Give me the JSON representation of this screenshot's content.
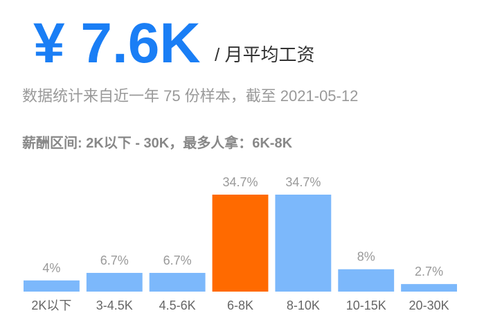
{
  "summary": {
    "headline": "¥ 7.6K",
    "unit": "/ 月平均工资",
    "subtitle": "数据统计来自近一年 75 份样本，截至 2021-05-12"
  },
  "chart_data": {
    "type": "bar",
    "title": "薪酬区间: 2K以下 - 30K，最多人拿：6K-8K",
    "categories": [
      "2K以下",
      "3-4.5K",
      "4.5-6K",
      "6-8K",
      "8-10K",
      "10-15K",
      "20-30K"
    ],
    "values": [
      4,
      6.7,
      6.7,
      34.7,
      34.7,
      8,
      2.7
    ],
    "value_labels": [
      "4%",
      "6.7%",
      "6.7%",
      "34.7%",
      "34.7%",
      "8%",
      "2.7%"
    ],
    "colors": [
      "#7cb8fb",
      "#7cb8fb",
      "#7cb8fb",
      "#ff6a00",
      "#7cb8fb",
      "#7cb8fb",
      "#7cb8fb"
    ]
  }
}
